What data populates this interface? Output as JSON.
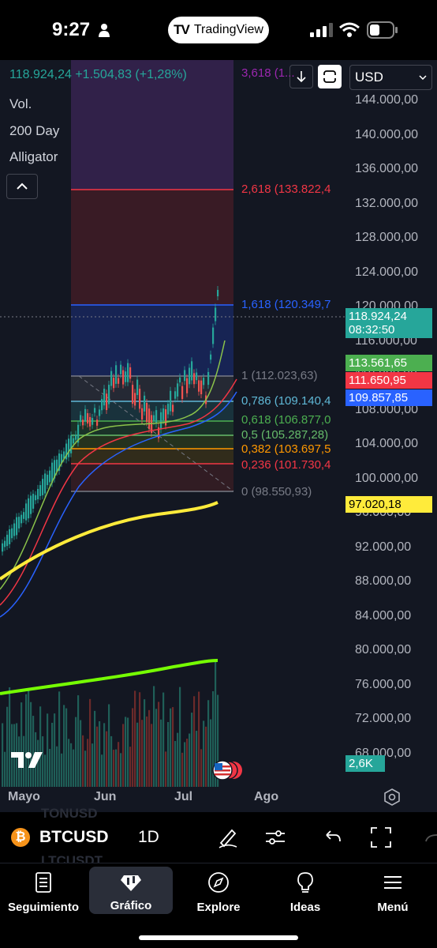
{
  "status_bar": {
    "time": "9:27",
    "app_pill": "TradingView",
    "app_pill_logo": "TV"
  },
  "chart_header": {
    "price_change": "118.924,24  +1.504,83 (+1,28%)",
    "currency": "USD",
    "indicators": [
      "Vol.",
      "200 Day",
      "Alligator"
    ]
  },
  "price_axis": [
    "144.000,00",
    "140.000,00",
    "136.000,00",
    "132.000,00",
    "128.000,00",
    "124.000,00",
    "120.000,00",
    "116.000,00",
    "112.000,00",
    "108.000,00",
    "104.000,00",
    "100.000,00",
    "96.000,00",
    "92.000,00",
    "88.000,00",
    "84.000,00",
    "80.000,00",
    "76.000,00",
    "72.000,00",
    "68.000,00"
  ],
  "price_tags": {
    "last_price": "118.924,24",
    "countdown": "08:32:50",
    "alligator_lips": "113.561,65",
    "alligator_teeth": "111.650,95",
    "alligator_jaw": "109.857,85",
    "ma200": "97.020,18",
    "volume": "2,6K"
  },
  "fib_levels": [
    {
      "label": "3,618 (1...",
      "color": "#9c27b0"
    },
    {
      "label": "2,618 (133.822,4",
      "color": "#f23645"
    },
    {
      "label": "1,618 (120.349,7",
      "color": "#2962ff"
    },
    {
      "label": "1 (112.023,63)",
      "color": "#787b86"
    },
    {
      "label": "0,786 (109.140,4",
      "color": "#5fb8d6"
    },
    {
      "label": "0,618 (106.877,0",
      "color": "#4caf50"
    },
    {
      "label": "0,5 (105.287,28)",
      "color": "#66bb6a"
    },
    {
      "label": "0,382 (103.697,5",
      "color": "#ff9800"
    },
    {
      "label": "0,236 (101.730,4",
      "color": "#f23645"
    },
    {
      "label": "0 (98.550,93)",
      "color": "#787b86"
    }
  ],
  "time_axis": [
    "Mayo",
    "Jun",
    "Jul",
    "Ago"
  ],
  "chart_data": {
    "type": "candlestick",
    "symbol": "BTCUSD",
    "interval": "1D",
    "y_range": [
      68000,
      144000
    ],
    "fibonacci_retracement": [
      {
        "ratio": 3.618,
        "price": null
      },
      {
        "ratio": 2.618,
        "price": 133822.4
      },
      {
        "ratio": 1.618,
        "price": 120349.7
      },
      {
        "ratio": 1,
        "price": 112023.63
      },
      {
        "ratio": 0.786,
        "price": 109140.4
      },
      {
        "ratio": 0.618,
        "price": 106877.0
      },
      {
        "ratio": 0.5,
        "price": 105287.28
      },
      {
        "ratio": 0.382,
        "price": 103697.5
      },
      {
        "ratio": 0.236,
        "price": 101730.4
      },
      {
        "ratio": 0,
        "price": 98550.93
      }
    ],
    "last_price": 118924.24,
    "ma200": 97020.18,
    "alligator": {
      "lips": 113561.65,
      "teeth": 111650.95,
      "jaw": 109857.85
    }
  },
  "symbol_bar": {
    "symbol": "BTCUSD",
    "interval": "1D",
    "ghost_above": "TONUSD",
    "ghost_below": "LTCUSDT",
    "coin_glyph": "₿"
  },
  "bottom_nav": [
    {
      "label": "Seguimiento"
    },
    {
      "label": "Gráfico"
    },
    {
      "label": "Explore"
    },
    {
      "label": "Ideas"
    },
    {
      "label": "Menú"
    }
  ]
}
